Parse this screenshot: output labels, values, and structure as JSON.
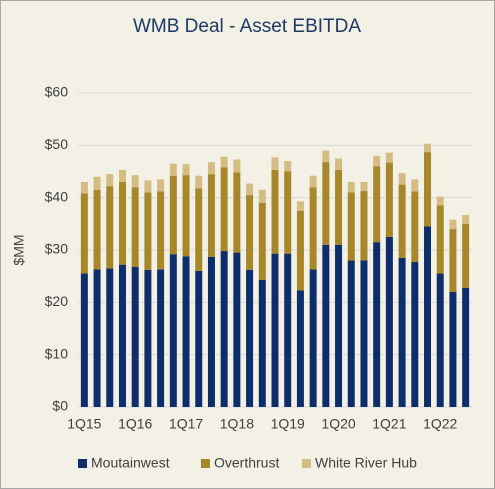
{
  "chart_data": {
    "type": "stacked_bar",
    "title": "WMB Deal - Asset EBITDA",
    "y_label": "$MM",
    "categories": [
      "1Q15",
      null,
      null,
      null,
      "1Q16",
      null,
      null,
      null,
      "1Q17",
      null,
      null,
      null,
      "1Q18",
      null,
      null,
      null,
      "1Q19",
      null,
      null,
      null,
      "1Q20",
      null,
      null,
      null,
      "1Q21",
      null,
      null,
      null,
      "1Q22",
      null,
      null
    ],
    "series": [
      {
        "name": "Moutainwest",
        "color": "#0e2d6b",
        "values": [
          25.5,
          26.3,
          26.5,
          27.2,
          26.8,
          26.2,
          26.3,
          29.2,
          28.8,
          26.0,
          28.7,
          29.8,
          29.5,
          26.2,
          24.3,
          29.3,
          29.3,
          22.3,
          26.3,
          31.0,
          31.0,
          28.0,
          28.0,
          31.5,
          32.5,
          28.5,
          27.7,
          34.5,
          25.5,
          22.0,
          22.8
        ]
      },
      {
        "name": "Overthrust",
        "color": "#a8862a",
        "values": [
          15.3,
          15.2,
          15.7,
          15.8,
          15.2,
          14.8,
          14.9,
          15.0,
          15.5,
          15.8,
          15.8,
          16.0,
          15.3,
          14.3,
          14.7,
          16.0,
          15.7,
          15.2,
          15.7,
          15.8,
          14.3,
          13.0,
          13.3,
          14.5,
          14.2,
          14.0,
          13.5,
          14.2,
          13.0,
          12.0,
          12.2
        ]
      },
      {
        "name": "White River Hub",
        "color": "#d4bd82",
        "values": [
          2.2,
          2.5,
          2.3,
          2.3,
          2.3,
          2.3,
          2.3,
          2.3,
          2.1,
          2.4,
          2.3,
          2.0,
          2.5,
          2.2,
          2.5,
          2.4,
          2.0,
          1.8,
          2.2,
          2.2,
          2.2,
          2.0,
          1.7,
          2.0,
          1.9,
          2.2,
          2.3,
          1.6,
          1.7,
          1.8,
          1.7
        ]
      }
    ],
    "ylim": [
      0,
      60
    ],
    "yticks": [
      {
        "value": 0,
        "label": "$0"
      },
      {
        "value": 10,
        "label": "$10"
      },
      {
        "value": 20,
        "label": "$20"
      },
      {
        "value": 30,
        "label": "$30"
      },
      {
        "value": 40,
        "label": "$40"
      },
      {
        "value": 50,
        "label": "$50"
      },
      {
        "value": 60,
        "label": "$60"
      }
    ],
    "grid": true,
    "legend": "bottom"
  }
}
